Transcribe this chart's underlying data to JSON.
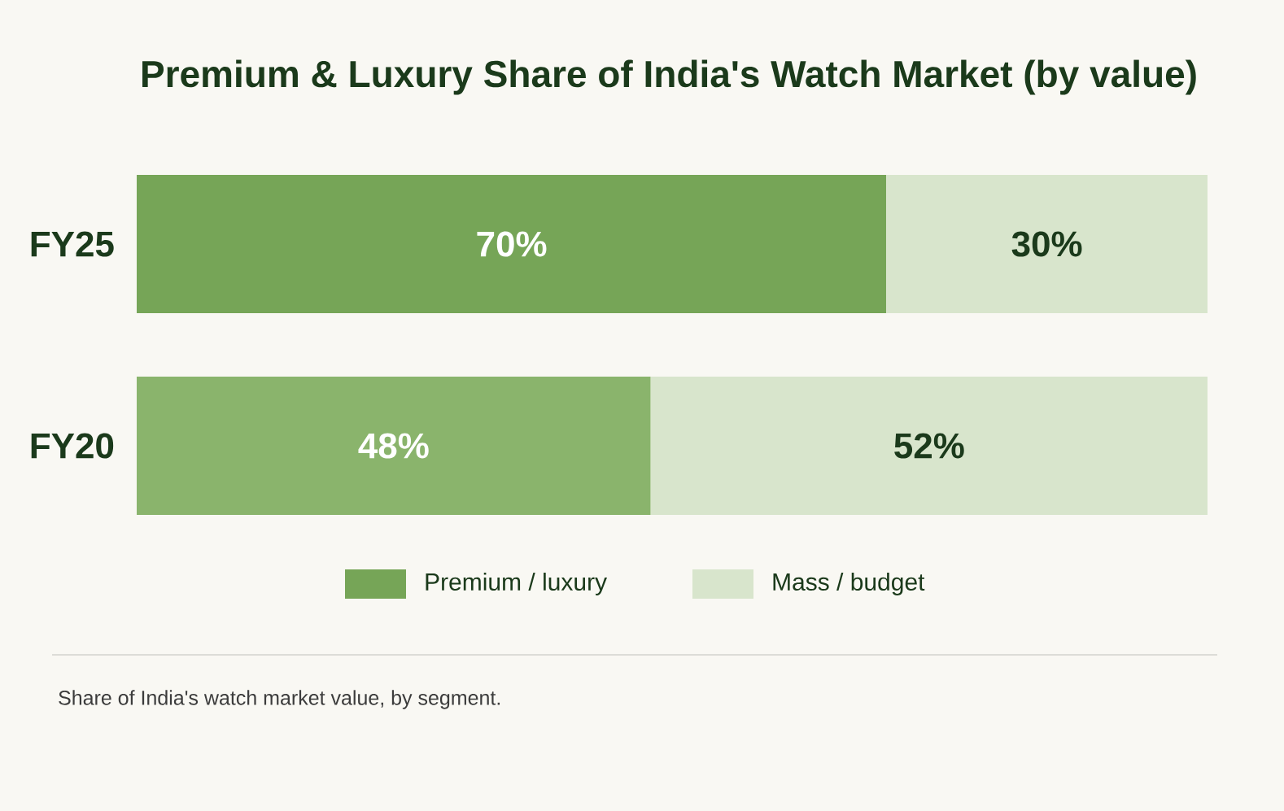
{
  "chart_data": {
    "type": "bar",
    "orientation": "horizontal",
    "stacked": true,
    "title": "Premium & Luxury Share of India's Watch Market (by value)",
    "categories": [
      "FY25",
      "FY20"
    ],
    "xlim": [
      0,
      100
    ],
    "tick_labels": "y",
    "legend": "bottom",
    "series": [
      {
        "name": "Premium / luxury",
        "color": "#76a557",
        "colors": [
          "#76a557",
          "#8ab46c"
        ],
        "values": [
          70,
          48
        ],
        "value_labels": [
          "70%",
          "48%"
        ]
      },
      {
        "name": "Mass / budget",
        "color": "#d8e5cc",
        "values": [
          30,
          52
        ],
        "value_labels": [
          "30%",
          "52%"
        ]
      }
    ],
    "annotations": [
      "Share of India's watch market value, by segment."
    ]
  }
}
